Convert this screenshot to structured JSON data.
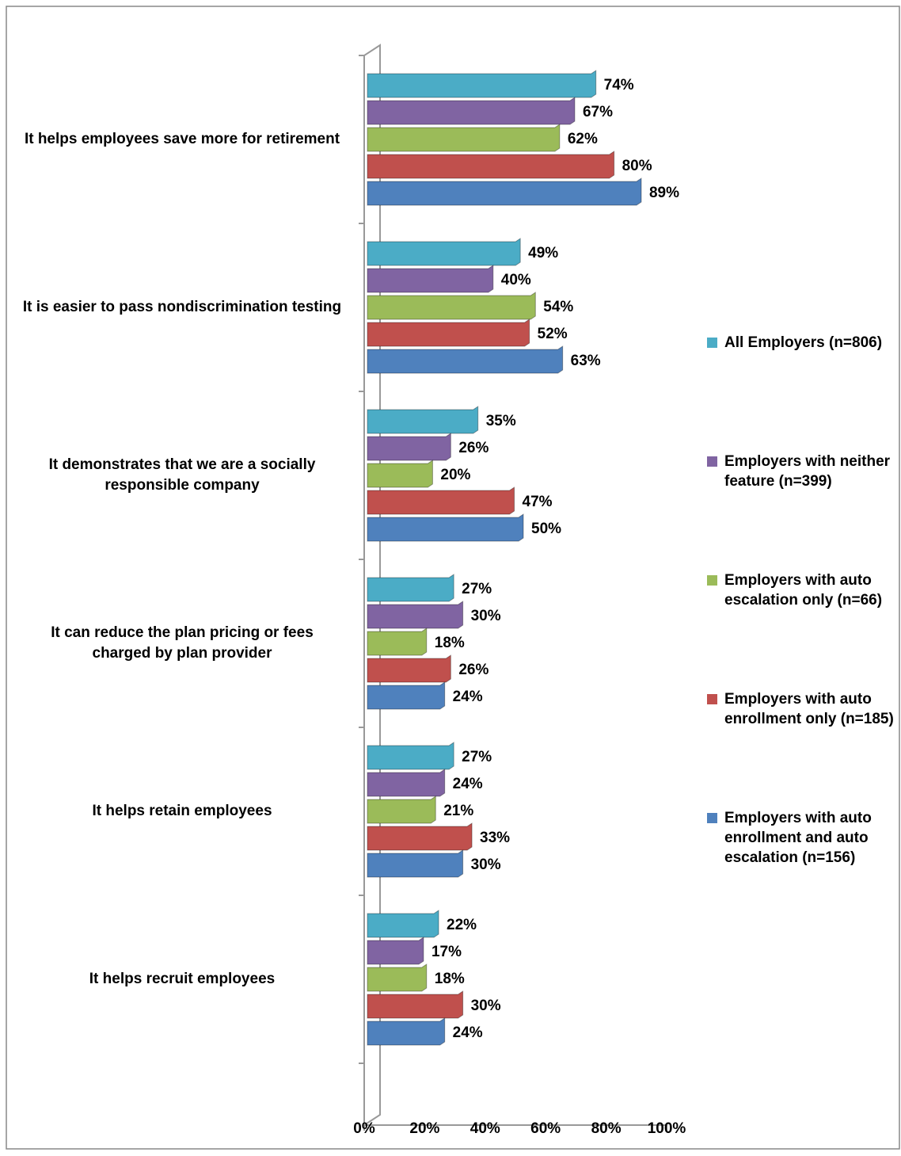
{
  "chart_data": {
    "type": "bar",
    "orientation": "horizontal",
    "categories": [
      "It helps employees save more for retirement",
      "It is easier to pass nondiscrimination testing",
      "It demonstrates that we are a socially responsible company",
      "It can reduce the plan pricing or fees charged by plan provider",
      "It helps retain employees",
      "It helps recruit employees"
    ],
    "series": [
      {
        "name": "All Employers (n=806)",
        "color": "#4bacc6",
        "values": [
          74,
          49,
          35,
          27,
          27,
          22
        ],
        "value_labels": [
          "74%",
          "49%",
          "35%",
          "27%",
          "27%",
          "22%"
        ]
      },
      {
        "name": "Employers with neither feature (n=399)",
        "color": "#8064a2",
        "values": [
          67,
          40,
          26,
          30,
          24,
          17
        ],
        "value_labels": [
          "67%",
          "40%",
          "26%",
          "30%",
          "24%",
          "17%"
        ]
      },
      {
        "name": "Employers with auto escalation only (n=66)",
        "color": "#9bbb59",
        "values": [
          62,
          54,
          20,
          18,
          21,
          18
        ],
        "value_labels": [
          "62%",
          "54%",
          "20%",
          "18%",
          "21%",
          "18%"
        ]
      },
      {
        "name": "Employers with auto enrollment only (n=185)",
        "color": "#c0504d",
        "values": [
          80,
          52,
          47,
          26,
          33,
          30
        ],
        "value_labels": [
          "80%",
          "52%",
          "47%",
          "26%",
          "33%",
          "30%"
        ]
      },
      {
        "name": "Employers with auto enrollment and auto escalation (n=156)",
        "color": "#4f81bd",
        "values": [
          89,
          63,
          50,
          24,
          30,
          24
        ],
        "value_labels": [
          "89%",
          "63%",
          "50%",
          "24%",
          "30%",
          "24%"
        ]
      }
    ],
    "xlim": [
      0,
      100
    ],
    "xticks": [
      {
        "value": 0,
        "label": "0%"
      },
      {
        "value": 20,
        "label": "20%"
      },
      {
        "value": 40,
        "label": "40%"
      },
      {
        "value": 60,
        "label": "60%"
      },
      {
        "value": 80,
        "label": "80%"
      },
      {
        "value": 100,
        "label": "100%"
      }
    ],
    "legend": "right"
  }
}
